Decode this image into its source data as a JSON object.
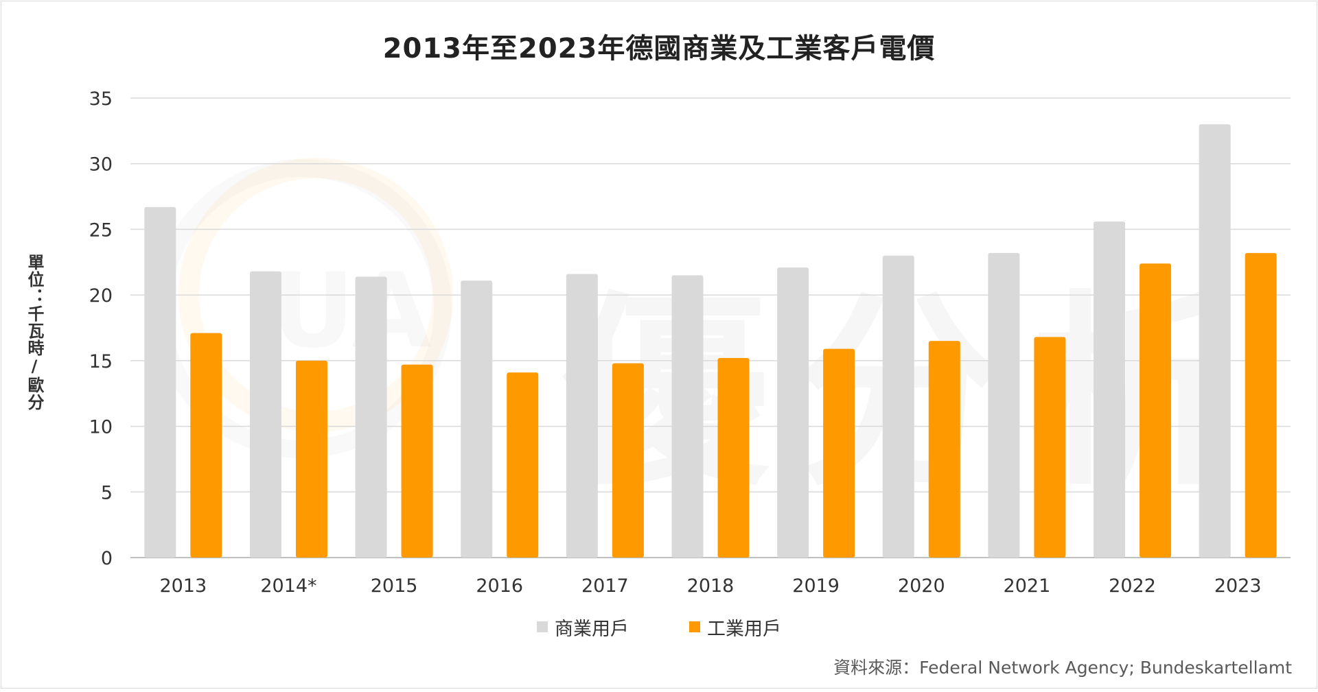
{
  "chart_data": {
    "type": "bar",
    "title": "2013年至2023年德國商業及工業客戶電價",
    "ylabel": "單位：千瓦時/歐分",
    "xlabel": "",
    "ylim": [
      0,
      35
    ],
    "yticks": [
      "0",
      "5",
      "10",
      "15",
      "20",
      "25",
      "30",
      "35"
    ],
    "categories": [
      "2013",
      "2014*",
      "2015",
      "2016",
      "2017",
      "2018",
      "2019",
      "2020",
      "2021",
      "2022",
      "2023"
    ],
    "series": [
      {
        "name": "商業用戶",
        "color": "#d9d9d9",
        "values": [
          26.7,
          21.8,
          21.4,
          21.1,
          21.6,
          21.5,
          22.1,
          23.0,
          23.2,
          25.6,
          33.0
        ]
      },
      {
        "name": "工業用戶",
        "color": "#ff9900",
        "values": [
          17.1,
          15.0,
          14.7,
          14.1,
          14.8,
          15.2,
          15.9,
          16.5,
          16.8,
          22.4,
          23.2
        ]
      }
    ],
    "grid": true,
    "legend_position": "bottom"
  },
  "source": "資料來源：Federal Network Agency; Bundeskartellamt",
  "watermark": {
    "logo_text": "UA",
    "text": "優分析"
  }
}
